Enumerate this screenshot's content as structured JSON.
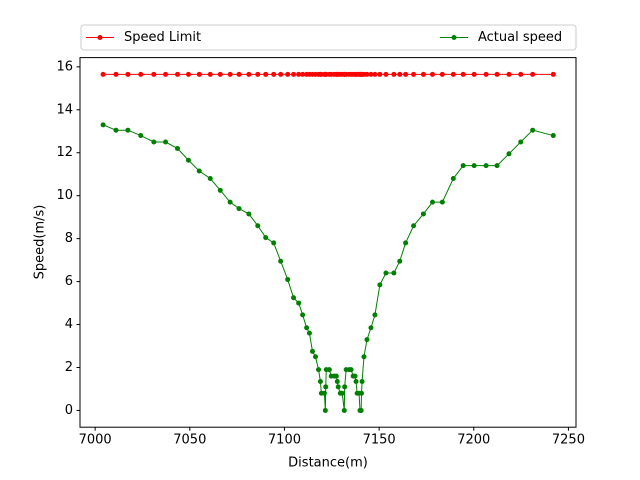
{
  "chart_data": {
    "type": "line",
    "x_label": "Distance(m)",
    "y_label": "Speed(m/s)",
    "x": [
      7004.2,
      7011,
      7017.3,
      7024.1,
      7031,
      7037.2,
      7043.5,
      7049.3,
      7055,
      7060.8,
      7066.1,
      7071.3,
      7076,
      7081.2,
      7085.9,
      7090.1,
      7094.3,
      7098,
      7101.7,
      7104.8,
      7107.5,
      7109.6,
      7111.7,
      7113.2,
      7114.8,
      7116.4,
      7118,
      7119,
      7119.5,
      7121.1,
      7121.6,
      7121.8,
      7122.1,
      7123.7,
      7124.7,
      7126.3,
      7127.4,
      7127.9,
      7128.4,
      7129.5,
      7130.5,
      7131.6,
      7131.8,
      7132.6,
      7134.2,
      7135.2,
      7136.3,
      7137.3,
      7137.8,
      7138.4,
      7139.4,
      7139.9,
      7140.5,
      7140.7,
      7141,
      7142,
      7143.6,
      7145.7,
      7147.8,
      7150.4,
      7153.6,
      7157.8,
      7160.9,
      7164,
      7168.2,
      7173.4,
      7178.2,
      7183.4,
      7189.2,
      7194.4,
      7200.2,
      7206.5,
      7212.3,
      7218.6,
      7224.8,
      7231.1,
      7242
    ],
    "series": [
      {
        "name": "Speed Limit",
        "color": "#ff0000",
        "values": [
          15.65,
          15.65,
          15.65,
          15.65,
          15.65,
          15.65,
          15.65,
          15.65,
          15.65,
          15.65,
          15.65,
          15.65,
          15.65,
          15.65,
          15.65,
          15.65,
          15.65,
          15.65,
          15.65,
          15.65,
          15.65,
          15.65,
          15.65,
          15.65,
          15.65,
          15.65,
          15.65,
          15.65,
          15.65,
          15.65,
          15.65,
          15.65,
          15.65,
          15.65,
          15.65,
          15.65,
          15.65,
          15.65,
          15.65,
          15.65,
          15.65,
          15.65,
          15.65,
          15.65,
          15.65,
          15.65,
          15.65,
          15.65,
          15.65,
          15.65,
          15.65,
          15.65,
          15.65,
          15.65,
          15.65,
          15.65,
          15.65,
          15.65,
          15.65,
          15.65,
          15.65,
          15.65,
          15.65,
          15.65,
          15.65,
          15.65,
          15.65,
          15.65,
          15.65,
          15.65,
          15.65,
          15.65,
          15.65,
          15.65,
          15.65,
          15.65,
          15.65
        ]
      },
      {
        "name": "Actual speed",
        "color": "#008000",
        "values": [
          13.3,
          13.05,
          13.05,
          12.8,
          12.5,
          12.5,
          12.2,
          11.65,
          11.15,
          10.8,
          10.25,
          9.7,
          9.4,
          9.15,
          8.6,
          8.05,
          7.8,
          6.95,
          6.1,
          5.25,
          5.0,
          4.45,
          3.85,
          3.6,
          2.75,
          2.5,
          1.9,
          1.35,
          0.8,
          0.8,
          0,
          1.1,
          1.9,
          1.9,
          1.6,
          1.6,
          1.6,
          1.35,
          1.1,
          0.8,
          0.8,
          0,
          1.1,
          1.9,
          1.9,
          1.9,
          1.6,
          1.6,
          1.35,
          0.8,
          0.8,
          0,
          0,
          0.8,
          1.35,
          2.5,
          3.3,
          3.85,
          4.45,
          5.85,
          6.4,
          6.4,
          6.95,
          7.8,
          8.6,
          9.15,
          9.7,
          9.7,
          10.8,
          11.4,
          11.4,
          11.4,
          11.4,
          11.95,
          12.5,
          13.05,
          12.8
        ]
      }
    ],
    "xlim": [
      6992,
      7254
    ],
    "xticks": [
      7000,
      7050,
      7100,
      7150,
      7200,
      7250
    ],
    "ylim": [
      -0.78,
      16.43
    ],
    "yticks": [
      0,
      2,
      4,
      6,
      8,
      10,
      12,
      14,
      16
    ]
  }
}
